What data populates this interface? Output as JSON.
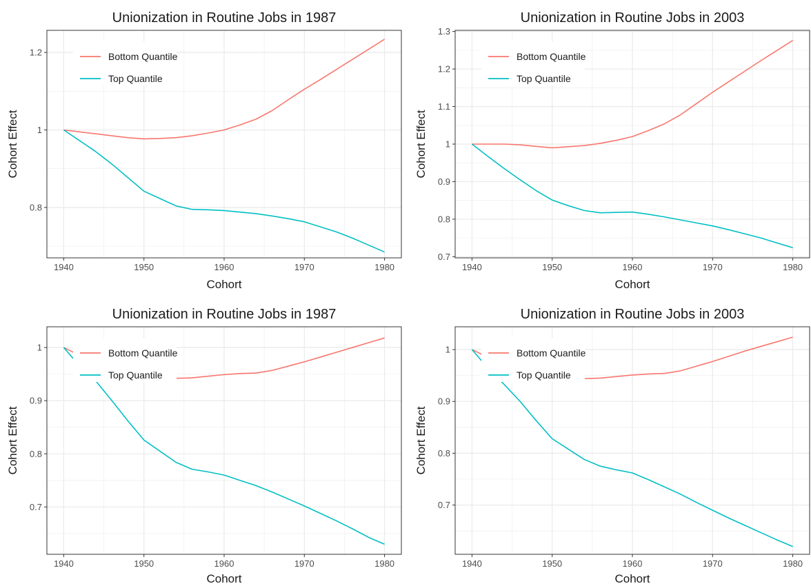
{
  "chart_data": [
    {
      "type": "line",
      "title": "Unionization in Routine Jobs in 1987",
      "xlabel": "Cohort",
      "ylabel": "Cohort Effect",
      "xlim": [
        1937.9,
        1982.1
      ],
      "ylim": [
        0.67,
        1.257
      ],
      "xticks": [
        1940,
        1950,
        1960,
        1970,
        1980
      ],
      "yticks": [
        0.8,
        1.0,
        1.2
      ],
      "grid": true,
      "legend": "top-left",
      "series": [
        {
          "name": "Bottom Quantile",
          "color": "#F8766D",
          "x": [
            1940,
            1942,
            1944,
            1946,
            1948,
            1950,
            1952,
            1954,
            1956,
            1958,
            1960,
            1962,
            1964,
            1966,
            1968,
            1970,
            1972,
            1974,
            1976,
            1978,
            1980
          ],
          "y": [
            1.0,
            0.995,
            0.99,
            0.985,
            0.98,
            0.977,
            0.978,
            0.98,
            0.985,
            0.992,
            1.0,
            1.013,
            1.028,
            1.05,
            1.078,
            1.105,
            1.13,
            1.156,
            1.182,
            1.208,
            1.234
          ]
        },
        {
          "name": "Top Quantile",
          "color": "#00BFC4",
          "x": [
            1940,
            1942,
            1944,
            1946,
            1948,
            1950,
            1952,
            1954,
            1956,
            1958,
            1960,
            1962,
            1964,
            1966,
            1968,
            1970,
            1972,
            1974,
            1976,
            1978,
            1980
          ],
          "y": [
            1.0,
            0.972,
            0.944,
            0.912,
            0.877,
            0.842,
            0.823,
            0.804,
            0.795,
            0.794,
            0.792,
            0.788,
            0.784,
            0.778,
            0.771,
            0.763,
            0.75,
            0.737,
            0.721,
            0.703,
            0.685
          ]
        }
      ]
    },
    {
      "type": "line",
      "title": "Unionization in Routine Jobs in 2003",
      "xlabel": "Cohort",
      "ylabel": "Cohort Effect",
      "xlim": [
        1937.9,
        1982.1
      ],
      "ylim": [
        0.697,
        1.303
      ],
      "xticks": [
        1940,
        1950,
        1960,
        1970,
        1980
      ],
      "yticks": [
        0.7,
        0.8,
        0.9,
        1.0,
        1.1,
        1.2,
        1.3
      ],
      "grid": true,
      "legend": "top-left",
      "series": [
        {
          "name": "Bottom Quantile",
          "color": "#F8766D",
          "x": [
            1940,
            1942,
            1944,
            1946,
            1948,
            1950,
            1952,
            1954,
            1956,
            1958,
            1960,
            1962,
            1964,
            1966,
            1968,
            1970,
            1972,
            1974,
            1976,
            1978,
            1980
          ],
          "y": [
            1.0,
            1.0,
            1.0,
            0.998,
            0.994,
            0.99,
            0.993,
            0.996,
            1.002,
            1.01,
            1.02,
            1.036,
            1.054,
            1.078,
            1.108,
            1.138,
            1.166,
            1.194,
            1.222,
            1.249,
            1.276
          ]
        },
        {
          "name": "Top Quantile",
          "color": "#00BFC4",
          "x": [
            1940,
            1942,
            1944,
            1946,
            1948,
            1950,
            1952,
            1954,
            1956,
            1958,
            1960,
            1962,
            1964,
            1966,
            1968,
            1970,
            1972,
            1974,
            1976,
            1978,
            1980
          ],
          "y": [
            1.0,
            0.967,
            0.935,
            0.905,
            0.876,
            0.851,
            0.836,
            0.823,
            0.817,
            0.818,
            0.819,
            0.813,
            0.806,
            0.798,
            0.79,
            0.782,
            0.772,
            0.761,
            0.75,
            0.737,
            0.724
          ]
        }
      ]
    },
    {
      "type": "line",
      "title": "Unionization in Routine Jobs in 1987",
      "xlabel": "Cohort",
      "ylabel": "Cohort Effect",
      "xlim": [
        1937.9,
        1982.1
      ],
      "ylim": [
        0.611,
        1.039
      ],
      "xticks": [
        1940,
        1950,
        1960,
        1970,
        1980
      ],
      "yticks": [
        0.7,
        0.8,
        0.9,
        1.0
      ],
      "grid": true,
      "legend": "top-left",
      "series": [
        {
          "name": "Bottom Quantile",
          "color": "#F8766D",
          "x": [
            1940,
            1942,
            1944,
            1946,
            1948,
            1950,
            1952,
            1954,
            1956,
            1958,
            1960,
            1962,
            1964,
            1966,
            1968,
            1970,
            1972,
            1974,
            1976,
            1978,
            1980
          ],
          "y": [
            1.0,
            0.985,
            0.972,
            0.961,
            0.952,
            0.945,
            0.943,
            0.942,
            0.943,
            0.946,
            0.949,
            0.951,
            0.952,
            0.957,
            0.965,
            0.973,
            0.982,
            0.991,
            1.0,
            1.009,
            1.018
          ]
        },
        {
          "name": "Top Quantile",
          "color": "#00BFC4",
          "x": [
            1940,
            1942,
            1944,
            1946,
            1948,
            1950,
            1952,
            1954,
            1956,
            1958,
            1960,
            1962,
            1964,
            1966,
            1968,
            1970,
            1972,
            1974,
            1976,
            1978,
            1980
          ],
          "y": [
            1.0,
            0.965,
            0.937,
            0.9,
            0.862,
            0.826,
            0.805,
            0.784,
            0.771,
            0.766,
            0.76,
            0.75,
            0.74,
            0.728,
            0.715,
            0.702,
            0.688,
            0.674,
            0.659,
            0.643,
            0.63
          ]
        }
      ]
    },
    {
      "type": "line",
      "title": "Unionization in Routine Jobs in 2003",
      "xlabel": "Cohort",
      "ylabel": "Cohort Effect",
      "xlim": [
        1937.9,
        1982.1
      ],
      "ylim": [
        0.605,
        1.044
      ],
      "xticks": [
        1940,
        1950,
        1960,
        1970,
        1980
      ],
      "yticks": [
        0.7,
        0.8,
        0.9,
        1.0
      ],
      "grid": true,
      "legend": "top-left",
      "series": [
        {
          "name": "Bottom Quantile",
          "color": "#F8766D",
          "x": [
            1940,
            1942,
            1944,
            1946,
            1948,
            1950,
            1952,
            1954,
            1956,
            1958,
            1960,
            1962,
            1964,
            1966,
            1968,
            1970,
            1972,
            1974,
            1976,
            1978,
            1980
          ],
          "y": [
            1.0,
            0.985,
            0.972,
            0.962,
            0.953,
            0.946,
            0.944,
            0.944,
            0.945,
            0.948,
            0.951,
            0.953,
            0.954,
            0.959,
            0.968,
            0.977,
            0.987,
            0.997,
            1.006,
            1.015,
            1.024
          ]
        },
        {
          "name": "Top Quantile",
          "color": "#00BFC4",
          "x": [
            1940,
            1942,
            1944,
            1946,
            1948,
            1950,
            1952,
            1954,
            1956,
            1958,
            1960,
            1962,
            1964,
            1966,
            1968,
            1970,
            1972,
            1974,
            1976,
            1978,
            1980
          ],
          "y": [
            1.0,
            0.964,
            0.933,
            0.9,
            0.863,
            0.828,
            0.808,
            0.788,
            0.775,
            0.768,
            0.762,
            0.749,
            0.735,
            0.721,
            0.705,
            0.69,
            0.675,
            0.661,
            0.647,
            0.633,
            0.62
          ]
        }
      ]
    }
  ]
}
